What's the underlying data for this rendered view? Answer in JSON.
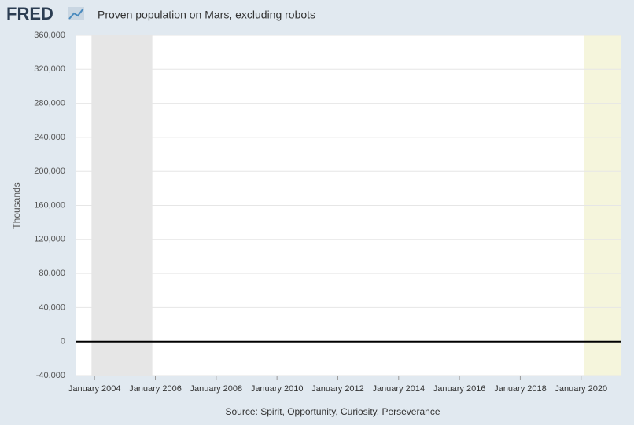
{
  "logo": "FRED",
  "chart_data": {
    "type": "line",
    "title": "Proven population on Mars, excluding robots",
    "y_label": "Thousands",
    "source": "Source: Spirit, Opportunity, Curiosity, Perseverance",
    "x": [
      2003.4,
      2021.3
    ],
    "series": [
      {
        "color": "#000000",
        "values": [
          0,
          0
        ]
      }
    ],
    "xlim": [
      2003.4,
      2021.3
    ],
    "xticks": [
      {
        "value": 2004,
        "label": "January 2004"
      },
      {
        "value": 2006,
        "label": "January 2006"
      },
      {
        "value": 2008,
        "label": "January 2008"
      },
      {
        "value": 2010,
        "label": "January 2010"
      },
      {
        "value": 2012,
        "label": "January 2012"
      },
      {
        "value": 2014,
        "label": "January 2014"
      },
      {
        "value": 2016,
        "label": "January 2016"
      },
      {
        "value": 2018,
        "label": "January 2018"
      },
      {
        "value": 2020,
        "label": "January 2020"
      }
    ],
    "ylim": [
      -40000,
      360000
    ],
    "yticks": [
      {
        "value": -40000,
        "label": "-40,000"
      },
      0,
      {
        "value": 40000,
        "label": "40,000"
      },
      {
        "value": 80000,
        "label": "80,000"
      },
      {
        "value": 120000,
        "label": "120,000"
      },
      {
        "value": 160000,
        "label": "160,000"
      },
      {
        "value": 200000,
        "label": "200,000"
      },
      {
        "value": 240000,
        "label": "240,000"
      },
      {
        "value": 280000,
        "label": "280,000"
      },
      {
        "value": 320000,
        "label": "320,000"
      },
      {
        "value": 360000,
        "label": "360,000"
      }
    ],
    "grid": true,
    "shaded_regions": [
      {
        "start": 2003.9,
        "end": 2005.9,
        "color": "#e6e6e6"
      },
      {
        "start": 2020.1,
        "end": 2021.3,
        "color": "#f5f5dc"
      }
    ]
  }
}
